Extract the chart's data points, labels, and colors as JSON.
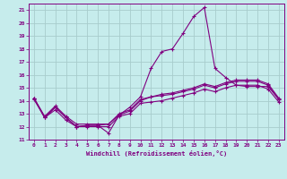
{
  "xlabel": "Windchill (Refroidissement éolien,°C)",
  "xlim": [
    -0.5,
    23.5
  ],
  "ylim": [
    11,
    21.5
  ],
  "yticks": [
    11,
    12,
    13,
    14,
    15,
    16,
    17,
    18,
    19,
    20,
    21
  ],
  "xticks": [
    0,
    1,
    2,
    3,
    4,
    5,
    6,
    7,
    8,
    9,
    10,
    11,
    12,
    13,
    14,
    15,
    16,
    17,
    18,
    19,
    20,
    21,
    22,
    23
  ],
  "bg_color": "#c6ecec",
  "grid_color": "#a8cccc",
  "line_color": "#800080",
  "line1": [
    14.2,
    12.7,
    13.5,
    12.7,
    12.0,
    12.1,
    12.1,
    11.5,
    12.9,
    13.5,
    14.3,
    16.5,
    17.8,
    18.0,
    19.2,
    20.5,
    21.2,
    16.5,
    15.8,
    15.2,
    15.1,
    15.1,
    15.1,
    14.1
  ],
  "line2": [
    14.1,
    12.7,
    13.3,
    12.5,
    12.0,
    12.0,
    12.0,
    12.0,
    12.8,
    13.0,
    13.8,
    13.9,
    14.0,
    14.2,
    14.4,
    14.6,
    14.9,
    14.7,
    15.0,
    15.2,
    15.2,
    15.2,
    14.9,
    13.9
  ],
  "line3": [
    14.2,
    12.8,
    13.6,
    12.8,
    12.2,
    12.2,
    12.2,
    12.2,
    13.0,
    13.3,
    14.1,
    14.3,
    14.5,
    14.6,
    14.8,
    15.0,
    15.3,
    15.1,
    15.4,
    15.6,
    15.6,
    15.6,
    15.3,
    14.2
  ],
  "line4": [
    14.2,
    12.7,
    13.5,
    12.7,
    12.0,
    12.1,
    12.1,
    12.2,
    12.9,
    13.2,
    14.0,
    14.3,
    14.4,
    14.5,
    14.7,
    14.9,
    15.2,
    15.0,
    15.3,
    15.5,
    15.5,
    15.5,
    15.2,
    14.1
  ]
}
